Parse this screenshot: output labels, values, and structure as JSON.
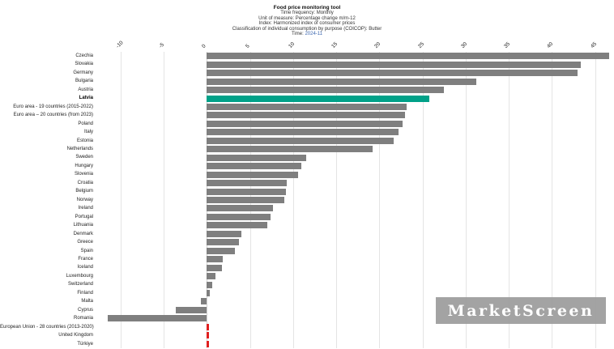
{
  "header": {
    "title": "Food price monitoring tool",
    "subtitle_lines": [
      "Time frequency:  Monthly",
      "Unit of measure:  Percentage change m/m-12",
      "Index:  Harmonized index of consumer prices",
      "Classification of individual consumption by purpose (COICOP):  Butter"
    ],
    "time_label": "Time:",
    "time_value": "2024-11"
  },
  "watermark": {
    "text": "MarketScreen"
  },
  "chart_data": {
    "type": "bar",
    "orientation": "horizontal",
    "title": "Food price monitoring tool",
    "xlabel": "Percentage change m/m-12",
    "ylabel": "",
    "unit": "%",
    "grid": true,
    "x_axis": {
      "min": -12.5,
      "max": 47,
      "ticks": [
        -10,
        -5,
        0,
        5,
        10,
        15,
        20,
        25,
        30,
        35,
        40,
        45
      ]
    },
    "bar_color_default": "#7f7f7f",
    "highlight_color": "#00a188",
    "nodata_color": "#e01f1f",
    "bars": [
      {
        "label": "Czechia",
        "value": 46.6
      },
      {
        "label": "Slovakia",
        "value": 43.3
      },
      {
        "label": "Germany",
        "value": 43.0
      },
      {
        "label": "Bulgaria",
        "value": 31.2
      },
      {
        "label": "Austria",
        "value": 27.5
      },
      {
        "label": "Latvia",
        "value": 25.8,
        "highlight": true
      },
      {
        "label": "Euro area - 19 countries  (2015-2022)",
        "value": 23.2
      },
      {
        "label": "Euro area – 20 countries (from 2023)",
        "value": 23.0
      },
      {
        "label": "Poland",
        "value": 22.7
      },
      {
        "label": "Italy",
        "value": 22.2
      },
      {
        "label": "Estonia",
        "value": 21.7
      },
      {
        "label": "Netherlands",
        "value": 19.2
      },
      {
        "label": "Sweden",
        "value": 11.5
      },
      {
        "label": "Hungary",
        "value": 11.0
      },
      {
        "label": "Slovenia",
        "value": 10.6
      },
      {
        "label": "Croatia",
        "value": 9.3
      },
      {
        "label": "Belgium",
        "value": 9.2
      },
      {
        "label": "Norway",
        "value": 9.0
      },
      {
        "label": "Ireland",
        "value": 7.7
      },
      {
        "label": "Portugal",
        "value": 7.4
      },
      {
        "label": "Lithuania",
        "value": 7.0
      },
      {
        "label": "Denmark",
        "value": 4.0
      },
      {
        "label": "Greece",
        "value": 3.7
      },
      {
        "label": "Spain",
        "value": 3.3
      },
      {
        "label": "France",
        "value": 1.9
      },
      {
        "label": "Iceland",
        "value": 1.8
      },
      {
        "label": "Luxembourg",
        "value": 1.0
      },
      {
        "label": "Switzerland",
        "value": 0.6
      },
      {
        "label": "Finland",
        "value": 0.4
      },
      {
        "label": "Malta",
        "value": -0.7
      },
      {
        "label": "Cyprus",
        "value": -3.6
      },
      {
        "label": "Romania",
        "value": -11.5
      },
      {
        "label": "European Union - 28 countries (2013-2020)",
        "value": 0.3,
        "nodata": true
      },
      {
        "label": "United Kingdom",
        "value": 0.3,
        "nodata": true
      },
      {
        "label": "Türkiye",
        "value": 0.3,
        "nodata": true
      }
    ]
  }
}
